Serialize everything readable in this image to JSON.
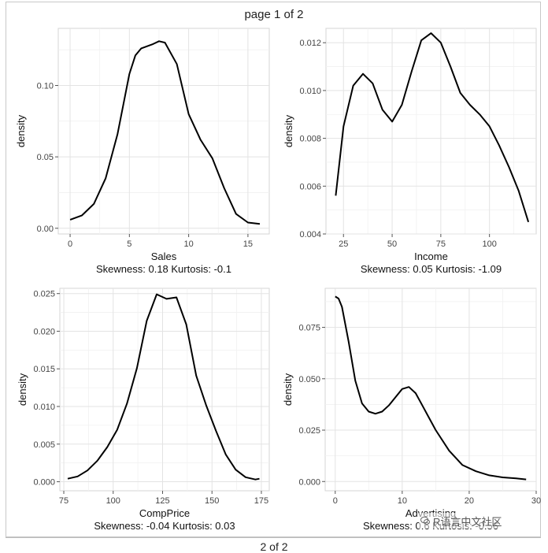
{
  "page": {
    "title": "page 1 of 2",
    "next_page": "2 of 2",
    "watermark": "R语言中文社区"
  },
  "chart_data": [
    {
      "type": "line",
      "xlabel": "Sales",
      "ylabel": "density",
      "stats": "Skewness: 0.18 Kurtosis: -0.1",
      "xlim": [
        -1,
        16.8
      ],
      "ylim": [
        -0.004,
        0.14
      ],
      "xticks": [
        0,
        5,
        10,
        15
      ],
      "yticks": [
        0.0,
        0.05,
        0.1
      ],
      "ytick_labels": [
        "0.00",
        "0.05",
        "0.10"
      ],
      "x": [
        0,
        1,
        2,
        3,
        4,
        5,
        5.5,
        6,
        7,
        7.5,
        8,
        9,
        10,
        11,
        12,
        13,
        14,
        15,
        16
      ],
      "y": [
        0.006,
        0.009,
        0.017,
        0.035,
        0.066,
        0.108,
        0.121,
        0.126,
        0.129,
        0.131,
        0.13,
        0.115,
        0.08,
        0.062,
        0.049,
        0.028,
        0.01,
        0.004,
        0.003
      ]
    },
    {
      "type": "line",
      "xlabel": "Income",
      "ylabel": "density",
      "stats": "Skewness: 0.05 Kurtosis: -1.09",
      "xlim": [
        16,
        124
      ],
      "ylim": [
        0.004,
        0.0126
      ],
      "xticks": [
        25,
        50,
        75,
        100
      ],
      "yticks": [
        0.004,
        0.006,
        0.008,
        0.01,
        0.012
      ],
      "ytick_labels": [
        "0.004",
        "0.006",
        "0.008",
        "0.010",
        "0.012"
      ],
      "x": [
        21,
        25,
        30,
        35,
        40,
        45,
        50,
        55,
        60,
        65,
        70,
        75,
        80,
        85,
        90,
        95,
        100,
        105,
        110,
        115,
        120
      ],
      "y": [
        0.0056,
        0.0085,
        0.0102,
        0.0107,
        0.0103,
        0.0092,
        0.0087,
        0.0094,
        0.0108,
        0.0121,
        0.0124,
        0.012,
        0.011,
        0.0099,
        0.0094,
        0.009,
        0.0085,
        0.0077,
        0.0068,
        0.0058,
        0.0045
      ]
    },
    {
      "type": "line",
      "xlabel": "CompPrice",
      "ylabel": "density",
      "stats": "Skewness: -0.04 Kurtosis: 0.03",
      "xlim": [
        73,
        179
      ],
      "ylim": [
        -0.0012,
        0.0257
      ],
      "xticks": [
        75,
        100,
        125,
        150,
        175
      ],
      "yticks": [
        0.0,
        0.005,
        0.01,
        0.015,
        0.02,
        0.025
      ],
      "ytick_labels": [
        "0.000",
        "0.005",
        "0.010",
        "0.015",
        "0.020",
        "0.025"
      ],
      "x": [
        77,
        82,
        87,
        92,
        97,
        102,
        107,
        112,
        117,
        122,
        127,
        132,
        137,
        142,
        147,
        152,
        157,
        162,
        167,
        172,
        174
      ],
      "y": [
        0.0004,
        0.0007,
        0.0015,
        0.0028,
        0.0046,
        0.0069,
        0.0104,
        0.0151,
        0.0214,
        0.0249,
        0.0243,
        0.0245,
        0.0209,
        0.0141,
        0.0102,
        0.0068,
        0.0036,
        0.0016,
        0.0006,
        0.0003,
        0.0004
      ]
    },
    {
      "type": "line",
      "xlabel": "Advertising",
      "ylabel": "density",
      "stats": "Skewness: 0.6 Kurtosis: -0.56",
      "xlim": [
        -1.5,
        30
      ],
      "ylim": [
        -0.0045,
        0.094
      ],
      "xticks": [
        0,
        10,
        20,
        30
      ],
      "yticks": [
        0.0,
        0.025,
        0.05,
        0.075
      ],
      "ytick_labels": [
        "0.000",
        "0.025",
        "0.050",
        "0.075"
      ],
      "x": [
        0,
        0.5,
        1,
        2,
        3,
        4,
        5,
        6,
        7,
        8,
        9,
        10,
        11,
        12,
        13,
        14,
        15,
        17,
        19,
        21,
        23,
        25,
        27,
        28.5
      ],
      "y": [
        0.09,
        0.089,
        0.085,
        0.068,
        0.049,
        0.038,
        0.034,
        0.033,
        0.034,
        0.037,
        0.041,
        0.045,
        0.046,
        0.043,
        0.037,
        0.031,
        0.025,
        0.015,
        0.008,
        0.005,
        0.003,
        0.002,
        0.0015,
        0.001
      ]
    }
  ]
}
